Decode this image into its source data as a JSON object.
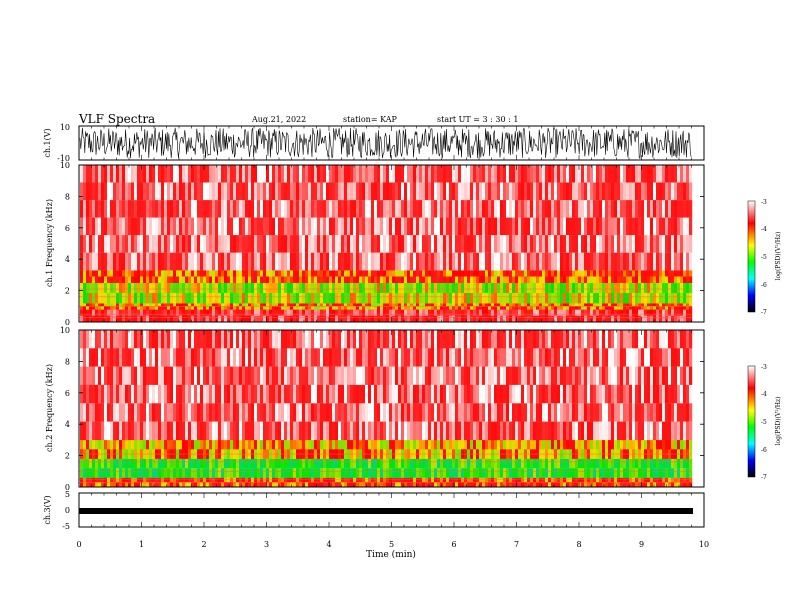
{
  "header": {
    "title": "VLF Spectra",
    "date": "Aug.21, 2022",
    "station": "station= KAP",
    "start": "start  UT =   3  : 30 : 1"
  },
  "colorbar": {
    "label": "log(PSD)(V²/Hz)",
    "ticks": [
      "-3",
      "-4",
      "-5",
      "-6",
      "-7"
    ],
    "stops": [
      "#ffffff",
      "#ff0000",
      "#ffff00",
      "#00ff00",
      "#00ffff",
      "#0000ff",
      "#000000"
    ]
  },
  "chart_data": [
    {
      "type": "line",
      "name": "ch1-waveform",
      "ylabel": "ch.1(V)",
      "ylim": [
        -10,
        10
      ],
      "yticks": [
        "10",
        "-10"
      ],
      "xlim": [
        0,
        10
      ],
      "description_of_signal": "dense noise waveform spanning roughly -9 to +9 V over 0-9.8 min",
      "approx_envelope": [
        -9,
        9
      ]
    },
    {
      "type": "heatmap",
      "name": "ch1-spectrogram",
      "ylabel": "ch.1 Frequency (kHz)",
      "ylim": [
        0,
        10
      ],
      "yticks": [
        "0",
        "2",
        "4",
        "6",
        "8",
        "10"
      ],
      "xlim": [
        0,
        10
      ],
      "data_end_min": 9.8,
      "bands": [
        {
          "from_khz": 0.0,
          "to_khz": 0.8,
          "log_psd": -3.6
        },
        {
          "from_khz": 0.8,
          "to_khz": 1.2,
          "log_psd": -4.2
        },
        {
          "from_khz": 1.2,
          "to_khz": 2.5,
          "log_psd": -4.6
        },
        {
          "from_khz": 2.5,
          "to_khz": 3.3,
          "log_psd": -4.1
        },
        {
          "from_khz": 3.3,
          "to_khz": 10.0,
          "log_psd": -3.4
        }
      ]
    },
    {
      "type": "heatmap",
      "name": "ch2-spectrogram",
      "ylabel": "ch.2 Frequency (kHz)",
      "ylim": [
        0,
        10
      ],
      "yticks": [
        "0",
        "2",
        "4",
        "6",
        "8",
        "10"
      ],
      "xlim": [
        0,
        10
      ],
      "data_end_min": 9.8,
      "bands": [
        {
          "from_khz": 0.0,
          "to_khz": 0.6,
          "log_psd": -4.0
        },
        {
          "from_khz": 0.6,
          "to_khz": 1.8,
          "log_psd": -5.0
        },
        {
          "from_khz": 1.8,
          "to_khz": 3.0,
          "log_psd": -4.3
        },
        {
          "from_khz": 3.0,
          "to_khz": 10.0,
          "log_psd": -3.4
        }
      ]
    },
    {
      "type": "line",
      "name": "ch3-waveform",
      "ylabel": "ch.3(V)",
      "ylim": [
        -5,
        5
      ],
      "yticks": [
        "5",
        "0",
        "-5"
      ],
      "xlim": [
        0,
        10
      ],
      "xlabel": "Time (min)",
      "xticks": [
        "0",
        "1",
        "2",
        "3",
        "4",
        "5",
        "6",
        "7",
        "8",
        "9",
        "10"
      ],
      "approx_envelope": [
        -0.3,
        0.3
      ],
      "level": 0
    }
  ]
}
